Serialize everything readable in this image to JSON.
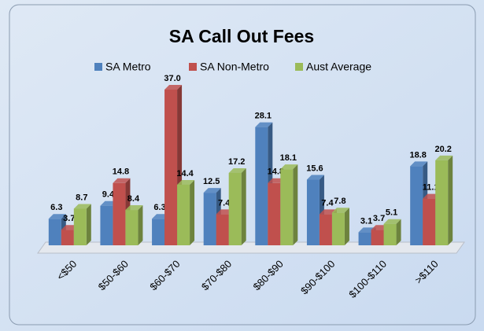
{
  "chart_data": {
    "type": "bar3d",
    "title": "SA Call Out Fees",
    "categories": [
      "<$50",
      "$50-$60",
      "$60-$70",
      "$70-$80",
      "$80-$90",
      "$90-$100",
      "$100-$110",
      ">$110"
    ],
    "series": [
      {
        "name": "SA Metro",
        "color": "#4f81bd",
        "values": [
          6.3,
          9.4,
          6.3,
          12.5,
          28.1,
          15.6,
          3.1,
          18.8
        ],
        "value_labels": [
          "6.3",
          "9.4",
          "6.3",
          "12.5",
          "28.1",
          "15.6",
          "3.1",
          "18.8"
        ]
      },
      {
        "name": "SA Non-Metro",
        "color": "#c0504d",
        "values": [
          3.7,
          14.8,
          37.0,
          7.4,
          14.8,
          7.4,
          3.7,
          11.1
        ],
        "value_labels": [
          "3.7",
          "14.8",
          "37.0",
          "7.4",
          "14.8",
          "7.4",
          "3.7",
          "11.1"
        ]
      },
      {
        "name": "Aust Average",
        "color": "#9bbb59",
        "values": [
          8.7,
          8.4,
          14.4,
          17.2,
          18.1,
          7.8,
          5.1,
          20.2
        ],
        "value_labels": [
          "8.7",
          "8.4",
          "14.4",
          "17.2",
          "18.1",
          "7.8",
          "5.1",
          "20.2"
        ]
      }
    ],
    "legend": "top"
  }
}
